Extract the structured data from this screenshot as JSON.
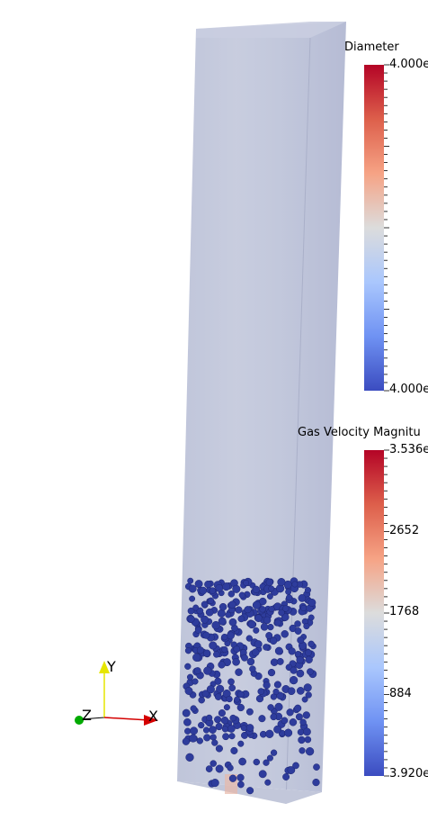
{
  "colorbars": {
    "diameter": {
      "title": "Diameter",
      "top_label": "4.000e",
      "bottom_label": "4.000e"
    },
    "gas_velocity": {
      "title": "Gas Velocity Magnitu",
      "top_label": "3.536e",
      "labels": [
        "2652",
        "1768",
        "884"
      ],
      "bottom_label": "3.920e"
    },
    "colormap": [
      "#b40426",
      "#dd5f4b",
      "#f6a385",
      "#dcdcdc",
      "#aac7fd",
      "#6f92f3",
      "#3b4cc0"
    ]
  },
  "axes_triad": {
    "y": "Y",
    "z": "Z",
    "x": "X",
    "colors": {
      "y": "#e6e600",
      "x": "#d40000",
      "z": "#00aa00"
    }
  },
  "scene": {
    "column_fill": "#b8bed6",
    "particle_color": "#2e3c9c"
  }
}
